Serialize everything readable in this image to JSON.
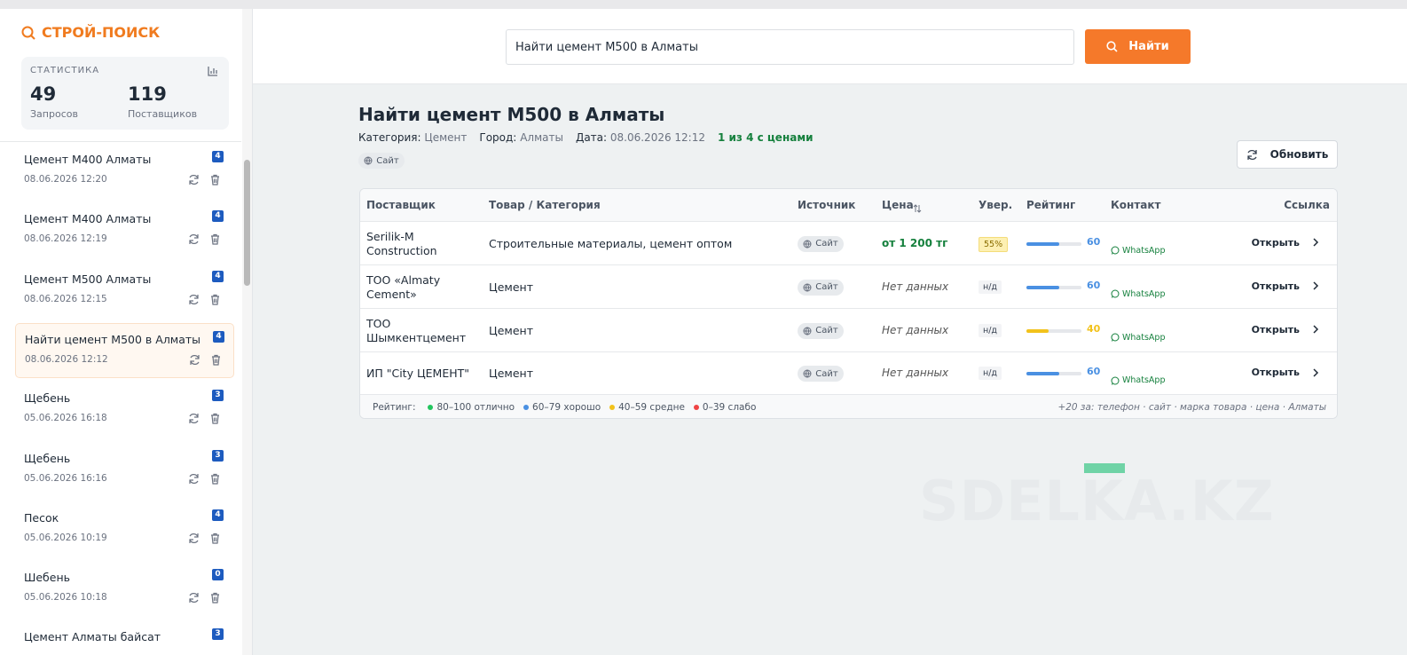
{
  "brand": "СТРОЙ-ПОИСК",
  "stats": {
    "title": "СТАТИСТИКА",
    "items": [
      {
        "value": 49,
        "label": "Запросов"
      },
      {
        "value": 119,
        "label": "Поставщиков"
      }
    ]
  },
  "history": [
    {
      "title": "Цемент М400 Алматы",
      "date": "08.06.2026 12:20",
      "count": 4
    },
    {
      "title": "Цемент М400 Алматы",
      "date": "08.06.2026 12:19",
      "count": 4
    },
    {
      "title": "Цемент М500 Алматы",
      "date": "08.06.2026 12:15",
      "count": 4
    },
    {
      "title": "Найти цемент М500 в Алматы",
      "date": "08.06.2026 12:12",
      "count": 4,
      "active": true
    },
    {
      "title": "Щебень",
      "date": "05.06.2026 16:18",
      "count": 3
    },
    {
      "title": "Щебень",
      "date": "05.06.2026 16:16",
      "count": 3
    },
    {
      "title": "Песок",
      "date": "05.06.2026 10:19",
      "count": 4
    },
    {
      "title": "Шебень",
      "date": "05.06.2026 10:18",
      "count": 0
    },
    {
      "title": "Цемент Алматы байсат",
      "count": 3
    }
  ],
  "search": {
    "query": "Найти цемент М500 в Алматы",
    "button": "Найти"
  },
  "result": {
    "title": "Найти цемент М500 в Алматы",
    "meta": [
      {
        "label": "Категория:",
        "value": "Цемент"
      },
      {
        "label": "Город:",
        "value": "Алматы"
      },
      {
        "label": "Дата:",
        "value": "08.06.2026 12:12"
      }
    ],
    "summary": "1 из 4 с ценами",
    "source_tag": "Сайт",
    "refresh": "Обновить"
  },
  "table": {
    "headers": [
      "Поставщик",
      "Товар / Категория",
      "Источник",
      "Цена",
      "Увер.",
      "Рейтинг",
      "Контакт",
      "Ссылка"
    ],
    "rows": [
      {
        "supplier": "Serilik-M Construction",
        "product": "Строительные материалы, цемент оптом",
        "source": "Сайт",
        "price": "от 1 200 тг",
        "confidence": "55%",
        "rating": 60,
        "rating_color": "#4a90e2",
        "contact": "WhatsApp",
        "link": "Открыть"
      },
      {
        "supplier": "ТОО «Almaty Cement»",
        "product": "Цемент",
        "source": "Сайт",
        "price": "Нет данных",
        "confidence": "н/д",
        "rating": 60,
        "rating_color": "#4a90e2",
        "contact": "WhatsApp",
        "link": "Открыть"
      },
      {
        "supplier": "ТОО Шымкентцемент",
        "product": "Цемент",
        "source": "Сайт",
        "price": "Нет данных",
        "confidence": "н/д",
        "rating": 40,
        "rating_color": "#f2c21b",
        "contact": "WhatsApp",
        "link": "Открыть"
      },
      {
        "supplier": "ИП \"City ЦЕМЕНТ\"",
        "product": "Цемент",
        "source": "Сайт",
        "price": "Нет данных",
        "confidence": "н/д",
        "rating": 60,
        "rating_color": "#4a90e2",
        "contact": "WhatsApp",
        "link": "Открыть"
      }
    ],
    "legend": {
      "title": "Рейтинг:",
      "items": [
        {
          "label": "80–100 отлично",
          "color": "#22c55e"
        },
        {
          "label": "60–79 хорошо",
          "color": "#4a90e2"
        },
        {
          "label": "40–59 средне",
          "color": "#f2c21b"
        },
        {
          "label": "0–39 слабо",
          "color": "#ef4444"
        }
      ],
      "note": "+20 за: телефон · сайт · марка товара · цена · Алматы"
    }
  },
  "watermark": "SDELKA.KZ"
}
